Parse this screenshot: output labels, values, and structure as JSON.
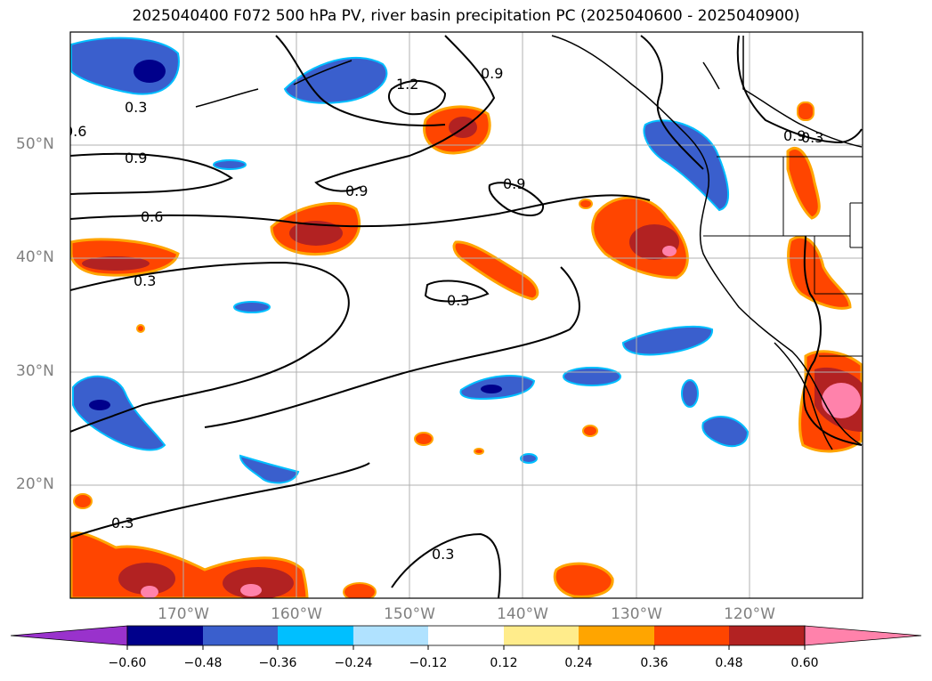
{
  "title": "2025040400 F072 500 hPa PV, river basin precipitation PC (2025040600 - 2025040900)",
  "map": {
    "lat_ticks": [
      "50°N",
      "40°N",
      "30°N",
      "20°N"
    ],
    "lon_ticks": [
      "170°W",
      "160°W",
      "150°W",
      "140°W",
      "130°W",
      "120°W"
    ],
    "contour_labels": [
      "0.3",
      "0.6",
      "0.9",
      "0.9",
      "0.6",
      "0.3",
      "1.2",
      "0.9",
      "0.9",
      "0.9",
      "0.3",
      "0.3",
      "0.3",
      "0.3"
    ]
  },
  "colorbar": {
    "ticks": [
      "−0.60",
      "−0.48",
      "−0.36",
      "−0.24",
      "−0.12",
      "0.12",
      "0.24",
      "0.36",
      "0.48",
      "0.60"
    ],
    "colors": [
      "#9932cc",
      "#00008b",
      "#3a5fcd",
      "#00bfff",
      "#b0e2ff",
      "#ffffff",
      "#ffec8b",
      "#ffa500",
      "#ff4500",
      "#b22222",
      "#ff82ab"
    ]
  },
  "colors": {
    "dark_blue": "#00008b",
    "mid_blue": "#3a5fcd",
    "cyan": "#00bfff",
    "light_blue": "#b0e2ff",
    "yellow": "#ffec8b",
    "orange": "#ffa500",
    "red_orange": "#ff4500",
    "dark_red": "#b22222",
    "pink": "#ff82ab"
  }
}
